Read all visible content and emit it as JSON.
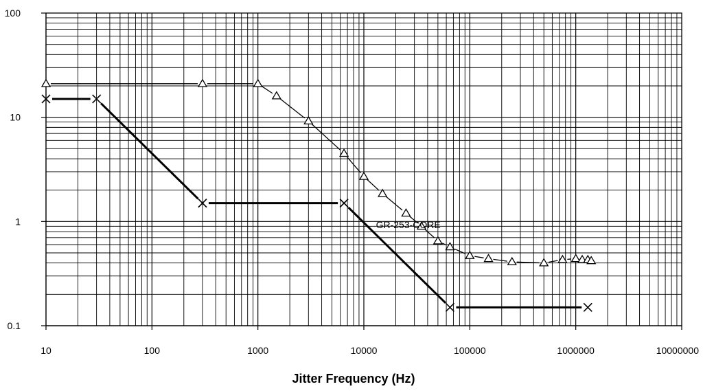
{
  "chart_data": {
    "type": "line",
    "title": "",
    "xlabel": "Jitter Frequency (Hz)",
    "ylabel": "",
    "x_scale": "log",
    "y_scale": "log",
    "xlim": [
      10,
      10000000
    ],
    "ylim": [
      0.1,
      100
    ],
    "grid": true,
    "x_tick_labels": [
      "10",
      "100",
      "1000",
      "10000",
      "100000",
      "1000000",
      "10000000"
    ],
    "y_tick_labels": [
      "0.1",
      "1",
      "10",
      "100"
    ],
    "x_ticks": [
      10,
      100,
      1000,
      10000,
      100000,
      1000000,
      10000000
    ],
    "y_ticks": [
      0.1,
      1,
      10,
      100
    ],
    "series": [
      {
        "marker": "triangle",
        "line": "thin",
        "color": "#000000",
        "x": [
          10,
          300,
          1000,
          1500,
          3000,
          6500,
          10000,
          15000,
          25000,
          35000,
          50000,
          65000,
          100000,
          150000,
          250000,
          500000,
          750000,
          1000000,
          1150000,
          1300000,
          1400000
        ],
        "y": [
          21,
          21,
          21,
          16,
          9.2,
          4.5,
          2.7,
          1.85,
          1.2,
          0.9,
          0.65,
          0.57,
          0.47,
          0.44,
          0.41,
          0.4,
          0.43,
          0.44,
          0.43,
          0.43,
          0.42
        ]
      },
      {
        "marker": "x",
        "line": "thick",
        "color": "#000000",
        "x": [
          10,
          30,
          300,
          6500,
          65000,
          1300000
        ],
        "y": [
          15,
          15,
          1.5,
          1.5,
          0.15,
          0.15
        ]
      }
    ],
    "annotations": [
      {
        "text": "GR-253-CORE",
        "x": 13000,
        "y": 0.93
      }
    ]
  }
}
